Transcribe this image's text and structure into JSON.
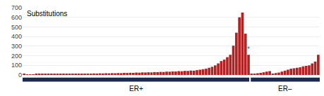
{
  "chart_data": {
    "type": "bar",
    "title": "Substitutions",
    "color": "#b22222",
    "values": [
      8,
      5,
      7,
      6,
      8,
      9,
      10,
      8,
      10,
      9,
      11,
      10,
      12,
      10,
      11,
      12,
      10,
      13,
      12,
      14,
      13,
      15,
      14,
      16,
      15,
      17,
      16,
      18,
      17,
      19,
      18,
      20,
      19,
      22,
      21,
      23,
      22,
      25,
      24,
      27,
      26,
      28,
      27,
      30,
      29,
      32,
      31,
      35,
      34,
      37,
      36,
      40,
      39,
      43,
      42,
      46,
      45,
      50,
      55,
      60,
      65,
      75,
      85,
      100,
      120,
      145,
      160,
      185,
      210,
      305,
      440,
      600,
      650,
      430,
      210,
      10,
      12,
      18,
      22,
      28,
      35,
      40,
      15,
      20,
      25,
      35,
      45,
      55,
      65,
      70,
      75,
      80,
      90,
      95,
      100,
      120,
      140,
      210
    ],
    "ylim": [
      0,
      700
    ],
    "yticks": [
      0,
      100,
      200,
      300,
      400,
      500,
      600,
      700
    ],
    "grid": true,
    "tick_labels": "y",
    "annotations": [
      {
        "text": "*",
        "x": 74,
        "color": "#4455bb"
      }
    ],
    "groups": [
      {
        "name": "ER+",
        "size": 75,
        "color": "#1a2951"
      },
      {
        "name": "ER–",
        "size": 23,
        "color": "#1a2951"
      }
    ]
  }
}
